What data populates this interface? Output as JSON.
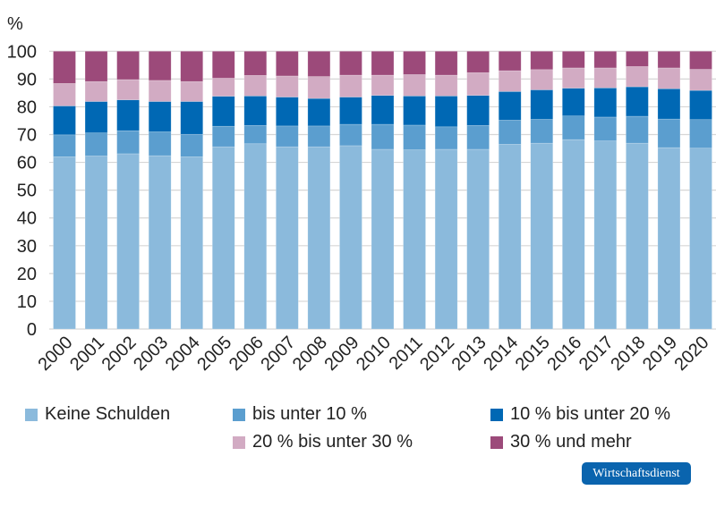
{
  "chart_data": {
    "type": "bar",
    "stacked": true,
    "ylabel": "%",
    "ylim": [
      0,
      100
    ],
    "yticks": [
      0,
      10,
      20,
      30,
      40,
      50,
      60,
      70,
      80,
      90,
      100
    ],
    "grid": true,
    "legend_position": "bottom",
    "categories": [
      "2000",
      "2001",
      "2002",
      "2003",
      "2004",
      "2005",
      "2006",
      "2007",
      "2008",
      "2009",
      "2010",
      "2011",
      "2012",
      "2013",
      "2014",
      "2015",
      "2016",
      "2017",
      "2018",
      "2019",
      "2020"
    ],
    "series": [
      {
        "name": "Keine Schulden",
        "color": "#8bbadc",
        "values": [
          62.0,
          62.3,
          63.1,
          62.4,
          62.0,
          65.6,
          66.7,
          65.6,
          65.6,
          66.0,
          64.7,
          64.5,
          64.7,
          64.7,
          66.5,
          66.9,
          68.2,
          67.7,
          66.9,
          65.3,
          65.1
        ]
      },
      {
        "name": "bis unter 10 %",
        "color": "#5b9ecf",
        "values": [
          7.9,
          8.3,
          8.3,
          8.6,
          8.1,
          7.4,
          6.6,
          7.5,
          7.5,
          7.7,
          9.0,
          8.9,
          8.1,
          8.6,
          8.7,
          8.6,
          8.5,
          8.6,
          9.7,
          10.3,
          10.3
        ]
      },
      {
        "name": "10 % bis unter 20 %",
        "color": "#0068b4",
        "values": [
          10.4,
          11.3,
          11.1,
          10.9,
          11.8,
          10.8,
          10.6,
          10.4,
          9.9,
          9.8,
          10.4,
          10.5,
          11.1,
          10.8,
          10.3,
          10.6,
          10.0,
          10.5,
          10.6,
          10.9,
          10.5
        ]
      },
      {
        "name": "20 % bis unter 30 %",
        "color": "#d2abc3",
        "values": [
          8.1,
          7.2,
          7.3,
          7.6,
          7.2,
          6.5,
          7.4,
          7.6,
          7.9,
          7.9,
          7.3,
          7.7,
          7.5,
          8.2,
          7.5,
          7.3,
          7.3,
          7.2,
          7.3,
          7.5,
          7.6
        ]
      },
      {
        "name": "30 % und mehr",
        "color": "#9c4a7a",
        "values": [
          11.6,
          10.9,
          10.2,
          10.5,
          10.9,
          9.7,
          8.7,
          8.9,
          9.1,
          8.6,
          8.6,
          8.4,
          8.6,
          7.7,
          7.0,
          6.6,
          6.0,
          6.0,
          5.5,
          6.0,
          6.5
        ]
      }
    ]
  },
  "logo": "Wirtschaftsdienst"
}
